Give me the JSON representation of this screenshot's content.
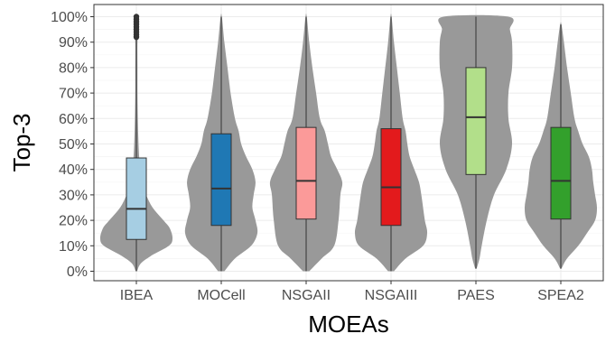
{
  "chart_data": {
    "type": "violin",
    "title": "",
    "xlabel": "MOEAs",
    "ylabel": "Top-3",
    "ylim": [
      0,
      100
    ],
    "y_ticks": [
      0,
      10,
      20,
      30,
      40,
      50,
      60,
      70,
      80,
      90,
      100
    ],
    "y_tick_labels": [
      "0%",
      "10%",
      "20%",
      "30%",
      "40%",
      "50%",
      "60%",
      "70%",
      "80%",
      "90%",
      "100%"
    ],
    "categories": [
      "IBEA",
      "MOCell",
      "NSGAII",
      "NSGAIII",
      "PAES",
      "SPEA2"
    ],
    "grid": "horizontal",
    "legend": "none",
    "colors": {
      "violin": "#999999",
      "panel_border": "#333333",
      "grid_major": "#ebebeb",
      "grid_minor": "#f4f4f4",
      "whisker": "#333333"
    },
    "series": [
      {
        "category": "IBEA",
        "color": "#a6cee3",
        "box": {
          "q1": 12.5,
          "median": 24.5,
          "q3": 44.5,
          "whisker_low": 0,
          "whisker_high": 91
        },
        "outliers": [
          92,
          93,
          94,
          95,
          96,
          97,
          98,
          99,
          100
        ],
        "density": [
          [
            0,
            0.02
          ],
          [
            3,
            0.12
          ],
          [
            6,
            0.4
          ],
          [
            10,
            0.9
          ],
          [
            13,
            1.0
          ],
          [
            17,
            0.92
          ],
          [
            20,
            0.75
          ],
          [
            25,
            0.45
          ],
          [
            30,
            0.27
          ],
          [
            35,
            0.15
          ],
          [
            40,
            0.1
          ],
          [
            50,
            0.06
          ],
          [
            60,
            0.04
          ],
          [
            70,
            0.03
          ],
          [
            80,
            0.03
          ],
          [
            90,
            0.03
          ],
          [
            95,
            0.06
          ],
          [
            100,
            0.02
          ]
        ]
      },
      {
        "category": "MOCell",
        "color": "#1f78b4",
        "box": {
          "q1": 18,
          "median": 32.5,
          "q3": 54,
          "whisker_low": 0,
          "whisker_high": 100
        },
        "outliers": [],
        "density": [
          [
            0,
            0.05
          ],
          [
            5,
            0.22
          ],
          [
            10,
            0.48
          ],
          [
            15,
            0.58
          ],
          [
            20,
            0.55
          ],
          [
            25,
            0.5
          ],
          [
            30,
            0.52
          ],
          [
            35,
            0.55
          ],
          [
            40,
            0.5
          ],
          [
            45,
            0.4
          ],
          [
            50,
            0.32
          ],
          [
            55,
            0.28
          ],
          [
            60,
            0.22
          ],
          [
            70,
            0.15
          ],
          [
            80,
            0.1
          ],
          [
            90,
            0.05
          ],
          [
            100,
            0.01
          ]
        ]
      },
      {
        "category": "NSGAII",
        "color": "#fb9a99",
        "box": {
          "q1": 20.5,
          "median": 35.5,
          "q3": 56.5,
          "whisker_low": 0,
          "whisker_high": 100
        },
        "outliers": [],
        "density": [
          [
            0,
            0.05
          ],
          [
            5,
            0.25
          ],
          [
            10,
            0.45
          ],
          [
            20,
            0.52
          ],
          [
            30,
            0.55
          ],
          [
            35,
            0.58
          ],
          [
            40,
            0.5
          ],
          [
            45,
            0.4
          ],
          [
            50,
            0.35
          ],
          [
            55,
            0.3
          ],
          [
            60,
            0.22
          ],
          [
            70,
            0.16
          ],
          [
            80,
            0.1
          ],
          [
            90,
            0.05
          ],
          [
            100,
            0.01
          ]
        ]
      },
      {
        "category": "NSGAIII",
        "color": "#e31a1c",
        "box": {
          "q1": 18,
          "median": 33,
          "q3": 56,
          "whisker_low": 0,
          "whisker_high": 100
        },
        "outliers": [],
        "density": [
          [
            0,
            0.05
          ],
          [
            5,
            0.25
          ],
          [
            10,
            0.55
          ],
          [
            15,
            0.62
          ],
          [
            20,
            0.58
          ],
          [
            25,
            0.55
          ],
          [
            30,
            0.52
          ],
          [
            35,
            0.48
          ],
          [
            40,
            0.4
          ],
          [
            45,
            0.32
          ],
          [
            50,
            0.28
          ],
          [
            55,
            0.25
          ],
          [
            60,
            0.2
          ],
          [
            70,
            0.15
          ],
          [
            80,
            0.1
          ],
          [
            90,
            0.05
          ],
          [
            100,
            0.01
          ]
        ]
      },
      {
        "category": "PAES",
        "color": "#b2df8a",
        "box": {
          "q1": 38,
          "median": 60.5,
          "q3": 80,
          "whisker_low": 1,
          "whisker_high": 100
        },
        "outliers": [],
        "density": [
          [
            1,
            0.01
          ],
          [
            5,
            0.05
          ],
          [
            10,
            0.08
          ],
          [
            20,
            0.15
          ],
          [
            30,
            0.25
          ],
          [
            40,
            0.42
          ],
          [
            50,
            0.5
          ],
          [
            60,
            0.45
          ],
          [
            70,
            0.45
          ],
          [
            80,
            0.5
          ],
          [
            90,
            0.5
          ],
          [
            95,
            0.47
          ],
          [
            100,
            0.45
          ]
        ]
      },
      {
        "category": "SPEA2",
        "color": "#33a02c",
        "box": {
          "q1": 20.5,
          "median": 35.5,
          "q3": 56.5,
          "whisker_low": 1,
          "whisker_high": 97
        },
        "outliers": [],
        "density": [
          [
            1,
            0.01
          ],
          [
            5,
            0.1
          ],
          [
            10,
            0.28
          ],
          [
            15,
            0.42
          ],
          [
            20,
            0.55
          ],
          [
            25,
            0.58
          ],
          [
            30,
            0.55
          ],
          [
            35,
            0.52
          ],
          [
            40,
            0.5
          ],
          [
            45,
            0.45
          ],
          [
            50,
            0.35
          ],
          [
            55,
            0.28
          ],
          [
            60,
            0.22
          ],
          [
            70,
            0.16
          ],
          [
            80,
            0.1
          ],
          [
            90,
            0.05
          ],
          [
            97,
            0.01
          ]
        ]
      }
    ]
  }
}
